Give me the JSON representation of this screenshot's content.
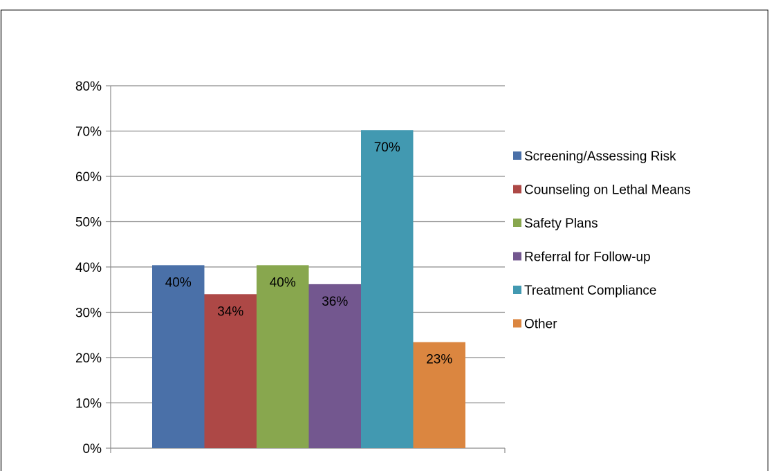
{
  "chart_data": {
    "type": "bar",
    "title": "",
    "xlabel": "",
    "ylabel": "",
    "ylim": [
      0,
      80
    ],
    "ytick_step": 10,
    "ytick_suffix": "%",
    "grid": true,
    "legend_position": "right",
    "series": [
      {
        "name": "Screening/Assessing Risk",
        "value": 40.4,
        "label": "40%",
        "color": "#4a70a8"
      },
      {
        "name": "Counseling on Lethal Means",
        "value": 34,
        "label": "34%",
        "color": "#ad4846"
      },
      {
        "name": "Safety Plans",
        "value": 40.4,
        "label": "40%",
        "color": "#88a74e"
      },
      {
        "name": "Referral for Follow-up",
        "value": 36.2,
        "label": "36%",
        "color": "#73578f"
      },
      {
        "name": "Treatment Compliance",
        "value": 70.2,
        "label": "70%",
        "color": "#4299b1"
      },
      {
        "name": "Other",
        "value": 23.4,
        "label": "23%",
        "color": "#db8640"
      }
    ]
  }
}
